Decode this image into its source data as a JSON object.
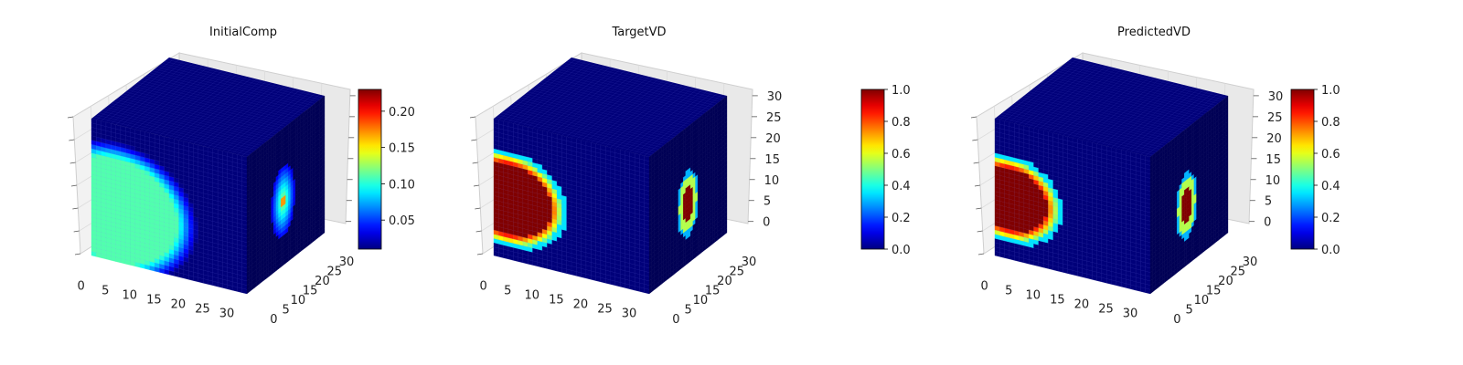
{
  "chart_data": [
    {
      "type": "voxel-3d",
      "title": "InitialComp",
      "x_ticks": [
        "0",
        "5",
        "10",
        "15",
        "20",
        "25",
        "30"
      ],
      "y_ticks": [
        "0",
        "5",
        "10",
        "15",
        "20",
        "25",
        "30"
      ],
      "z_ticks": [],
      "colormap": "jet",
      "colorbar": {
        "range": [
          0.01,
          0.23
        ],
        "ticks": [
          "0.05",
          "0.10",
          "0.15",
          "0.20"
        ],
        "tick_values": [
          0.05,
          0.1,
          0.15,
          0.2
        ]
      },
      "grid_size": 32,
      "front_blob": {
        "center_x": 5,
        "center_z": 12,
        "radius": 14,
        "peak_value": 0.11,
        "hard_edge": false
      },
      "side_blob": {
        "center_y": 15,
        "center_z": 15,
        "radius": 6,
        "peak_value": 0.17,
        "hard_edge": false
      }
    },
    {
      "type": "voxel-3d",
      "title": "TargetVD",
      "x_ticks": [
        "0",
        "5",
        "10",
        "15",
        "20",
        "25",
        "30"
      ],
      "y_ticks": [
        "0",
        "5",
        "10",
        "15",
        "20",
        "25",
        "30"
      ],
      "z_ticks": [
        "0",
        "5",
        "10",
        "15",
        "20",
        "25",
        "30"
      ],
      "colormap": "jet",
      "colorbar": {
        "range": [
          0.0,
          1.0
        ],
        "ticks": [
          "0.0",
          "0.2",
          "0.4",
          "0.6",
          "0.8",
          "1.0"
        ],
        "tick_values": [
          0.0,
          0.2,
          0.4,
          0.6,
          0.8,
          1.0
        ]
      },
      "grid_size": 32,
      "front_blob": {
        "center_x": 3,
        "center_z": 14,
        "radius": 10,
        "peak_value": 1.0,
        "hard_edge": true
      },
      "side_blob": {
        "center_y": 16,
        "center_z": 14,
        "radius": 4,
        "peak_value": 1.0,
        "hard_edge": true
      }
    },
    {
      "type": "voxel-3d",
      "title": "PredictedVD",
      "x_ticks": [
        "0",
        "5",
        "10",
        "15",
        "20",
        "25",
        "30"
      ],
      "y_ticks": [
        "0",
        "5",
        "10",
        "15",
        "20",
        "25",
        "30"
      ],
      "z_ticks": [
        "0",
        "5",
        "10",
        "15",
        "20",
        "25",
        "30"
      ],
      "colormap": "jet",
      "colorbar": {
        "range": [
          0.0,
          1.0
        ],
        "ticks": [
          "0.0",
          "0.2",
          "0.4",
          "0.6",
          "0.8",
          "1.0"
        ],
        "tick_values": [
          0.0,
          0.2,
          0.4,
          0.6,
          0.8,
          1.0
        ]
      },
      "grid_size": 32,
      "front_blob": {
        "center_x": 3,
        "center_z": 14,
        "radius": 9,
        "peak_value": 1.0,
        "hard_edge": true
      },
      "side_blob": {
        "center_y": 15,
        "center_z": 14,
        "radius": 4,
        "peak_value": 1.0,
        "hard_edge": true
      }
    }
  ],
  "colors": {
    "background_voxel": "#00007a",
    "pane": "#f2f2f2",
    "pane_grid": "#dcdcdc"
  }
}
